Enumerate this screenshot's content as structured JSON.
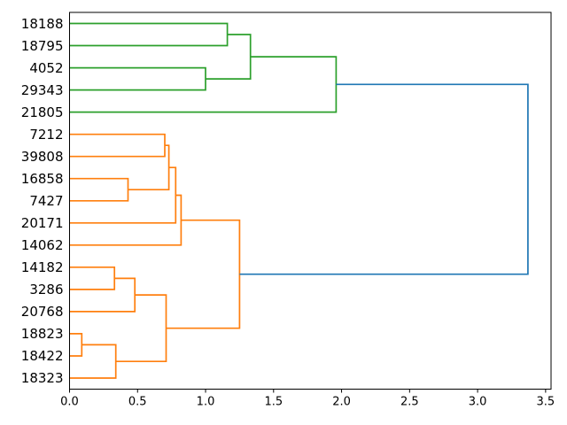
{
  "figure": {
    "background": "#ffffff",
    "title": ""
  },
  "chart_data": {
    "type": "dendrogram",
    "orientation": "left-labels-root-right",
    "grid": false,
    "legend": null,
    "leaves_top_to_bottom": [
      "18188",
      "18795",
      "4052",
      "29343",
      "21805",
      "7212",
      "39808",
      "16858",
      "7427",
      "20171",
      "14062",
      "14182",
      "3286",
      "20768",
      "18823",
      "18422",
      "18323"
    ],
    "merges": [
      {
        "id": "B",
        "children": [
          "4052",
          "29343"
        ],
        "height": 1.0,
        "color": "green"
      },
      {
        "id": "A",
        "children": [
          "18188",
          "18795"
        ],
        "height": 1.16,
        "color": "green"
      },
      {
        "id": "C",
        "children": [
          "A",
          "B"
        ],
        "height": 1.33,
        "color": "green"
      },
      {
        "id": "D",
        "children": [
          "C",
          "21805"
        ],
        "height": 1.96,
        "color": "green"
      },
      {
        "id": "L",
        "children": [
          "18823",
          "18422"
        ],
        "height": 0.09,
        "color": "orange"
      },
      {
        "id": "J",
        "children": [
          "14182",
          "3286"
        ],
        "height": 0.33,
        "color": "orange"
      },
      {
        "id": "M",
        "children": [
          "L",
          "18323"
        ],
        "height": 0.34,
        "color": "orange"
      },
      {
        "id": "F",
        "children": [
          "16858",
          "7427"
        ],
        "height": 0.43,
        "color": "orange"
      },
      {
        "id": "K",
        "children": [
          "J",
          "20768"
        ],
        "height": 0.48,
        "color": "orange"
      },
      {
        "id": "E",
        "children": [
          "7212",
          "39808"
        ],
        "height": 0.7,
        "color": "orange"
      },
      {
        "id": "N",
        "children": [
          "K",
          "M"
        ],
        "height": 0.71,
        "color": "orange"
      },
      {
        "id": "G",
        "children": [
          "E",
          "F"
        ],
        "height": 0.73,
        "color": "orange"
      },
      {
        "id": "H",
        "children": [
          "G",
          "20171"
        ],
        "height": 0.78,
        "color": "orange"
      },
      {
        "id": "I",
        "children": [
          "H",
          "14062"
        ],
        "height": 0.82,
        "color": "orange"
      },
      {
        "id": "O",
        "children": [
          "I",
          "N"
        ],
        "height": 1.25,
        "color": "orange"
      },
      {
        "id": "R",
        "children": [
          "D",
          "O"
        ],
        "height": 3.37,
        "color": "blue"
      }
    ],
    "x_axis": {
      "tick_labels": [
        "0.0",
        "0.5",
        "1.0",
        "1.5",
        "2.0",
        "2.5",
        "3.0",
        "3.5"
      ],
      "tick_values": [
        0.0,
        0.5,
        1.0,
        1.5,
        2.0,
        2.5,
        3.0,
        3.5
      ],
      "xlim": [
        0,
        3.54
      ]
    },
    "colors": {
      "green": "#2ca02c",
      "orange": "#ff7f0e",
      "blue": "#1f77b4",
      "spine": "#000000",
      "text": "#000000"
    }
  }
}
